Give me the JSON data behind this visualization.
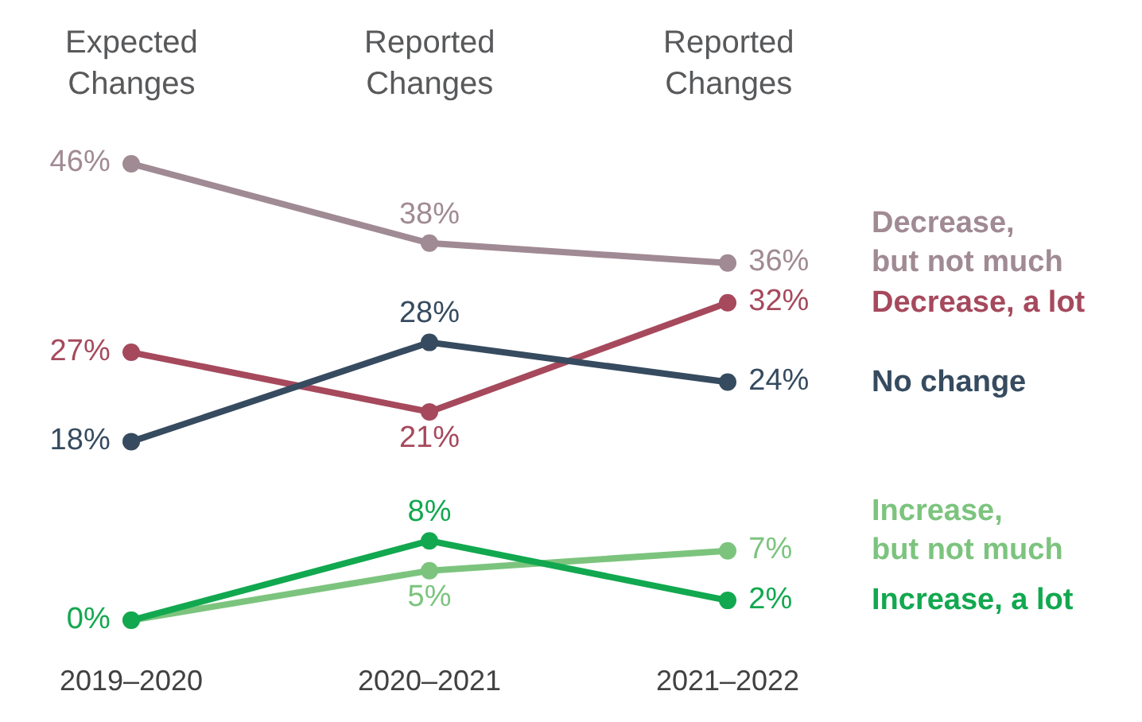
{
  "chart_data": {
    "type": "line",
    "categories": [
      "2019–2020",
      "2020–2021",
      "2021–2022"
    ],
    "annotations": [
      "Expected\nChanges",
      "Reported\nChanges",
      "Reported\nChanges"
    ],
    "marker": "circle",
    "legend": false,
    "series": [
      {
        "name": "Decrease,\nbut not much",
        "color": "#a08a93",
        "values": [
          46,
          38,
          36
        ],
        "value_labels": [
          "46%",
          "38%",
          "36%"
        ]
      },
      {
        "name": "Decrease, a lot",
        "color": "#a6495d",
        "values": [
          27,
          21,
          32
        ],
        "value_labels": [
          "27%",
          "21%",
          "32%"
        ]
      },
      {
        "name": "No change",
        "color": "#364b5f",
        "values": [
          18,
          28,
          24
        ],
        "value_labels": [
          "18%",
          "28%",
          "24%"
        ]
      },
      {
        "name": "Increase,\nbut not much",
        "color": "#7cc47e",
        "values": [
          0,
          5,
          7
        ],
        "value_labels": [
          null,
          "5%",
          "7%"
        ]
      },
      {
        "name": "Increase, a lot",
        "color": "#12a84f",
        "values": [
          0,
          8,
          2
        ],
        "value_labels": [
          "0%",
          "8%",
          "2%"
        ]
      }
    ]
  }
}
